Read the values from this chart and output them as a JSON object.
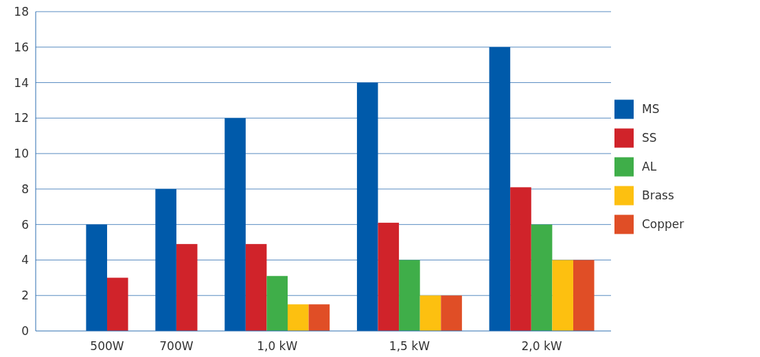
{
  "chart_data": {
    "type": "bar",
    "categories": [
      "500W",
      "700W",
      "1,0 kW",
      "1,5 kW",
      "2,0 kW"
    ],
    "series": [
      {
        "name": "MS",
        "color": "#005aaa",
        "values": [
          6,
          8,
          12,
          14,
          16
        ]
      },
      {
        "name": "SS",
        "color": "#d0232a",
        "values": [
          3,
          4.9,
          4.9,
          6.1,
          8.1
        ]
      },
      {
        "name": "AL",
        "color": "#3fae49",
        "values": [
          null,
          null,
          3.1,
          4,
          6
        ]
      },
      {
        "name": "Brass",
        "color": "#fdc010",
        "values": [
          null,
          null,
          1.5,
          2,
          4
        ]
      },
      {
        "name": "Copper",
        "color": "#e04e26",
        "values": [
          null,
          null,
          1.5,
          2,
          4
        ]
      }
    ],
    "ylim": [
      0,
      18
    ],
    "yticks": [
      0,
      2,
      4,
      6,
      8,
      10,
      12,
      14,
      16,
      18
    ],
    "grid": "y",
    "legend": "right"
  }
}
